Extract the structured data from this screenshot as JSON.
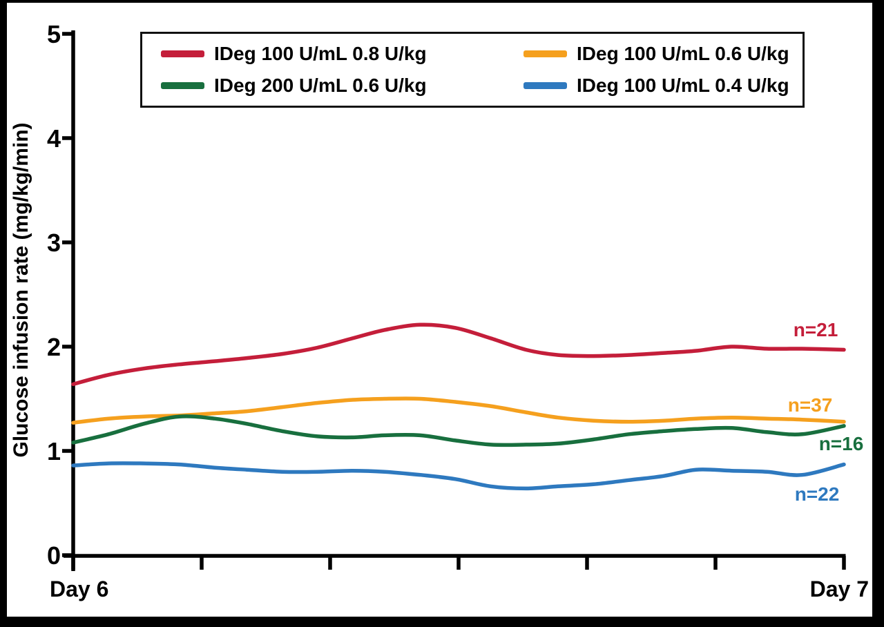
{
  "chart_data": {
    "type": "line",
    "title": "",
    "ylabel": "Glucose infusion rate (mg/kg/min)",
    "x_axis": {
      "start_label": "Day 6",
      "end_label": "Day 7",
      "duration_hours": 24,
      "tick_count": 7,
      "tick_labels_shown": false
    },
    "y_axis": {
      "tick_labels": [
        "5",
        "4",
        "3",
        "2",
        "1",
        "0"
      ],
      "range": [
        0,
        5
      ]
    },
    "x_hours": [
      0,
      1.1,
      2.2,
      3.3,
      4.4,
      5.4,
      6.5,
      7.6,
      8.7,
      9.7,
      10.8,
      11.9,
      13,
      14.1,
      15.1,
      16.2,
      17.3,
      18.4,
      19.4,
      20.5,
      21.6,
      22.7,
      24
    ],
    "series": [
      {
        "name": "IDeg 100 U/mL 0.8 U/kg",
        "color": "#C41E3A",
        "n_label": "n=21",
        "values": [
          1.64,
          1.73,
          1.79,
          1.83,
          1.86,
          1.89,
          1.93,
          1.99,
          2.08,
          2.16,
          2.21,
          2.18,
          2.08,
          1.97,
          1.92,
          1.91,
          1.92,
          1.94,
          1.96,
          2.0,
          1.98,
          1.98,
          1.97
        ]
      },
      {
        "name": "IDeg 100 U/mL 0.6 U/kg",
        "color": "#F5A01E",
        "n_label": "n=37",
        "values": [
          1.27,
          1.31,
          1.33,
          1.34,
          1.36,
          1.38,
          1.42,
          1.46,
          1.49,
          1.5,
          1.5,
          1.47,
          1.43,
          1.37,
          1.32,
          1.29,
          1.28,
          1.29,
          1.31,
          1.32,
          1.31,
          1.3,
          1.28
        ]
      },
      {
        "name": "IDeg 200 U/mL 0.6 U/kg",
        "color": "#186F3E",
        "n_label": "n=16",
        "values": [
          1.08,
          1.16,
          1.26,
          1.33,
          1.31,
          1.26,
          1.19,
          1.14,
          1.13,
          1.15,
          1.15,
          1.1,
          1.06,
          1.06,
          1.07,
          1.11,
          1.16,
          1.19,
          1.21,
          1.22,
          1.18,
          1.16,
          1.24
        ]
      },
      {
        "name": "IDeg 100 U/mL 0.4 U/kg",
        "color": "#2E79BF",
        "n_label": "n=22",
        "values": [
          0.86,
          0.88,
          0.88,
          0.87,
          0.84,
          0.82,
          0.8,
          0.8,
          0.81,
          0.8,
          0.77,
          0.73,
          0.66,
          0.64,
          0.66,
          0.68,
          0.72,
          0.76,
          0.82,
          0.81,
          0.8,
          0.77,
          0.87
        ]
      }
    ],
    "legend": {
      "position": "top-center",
      "columns": 2
    }
  }
}
